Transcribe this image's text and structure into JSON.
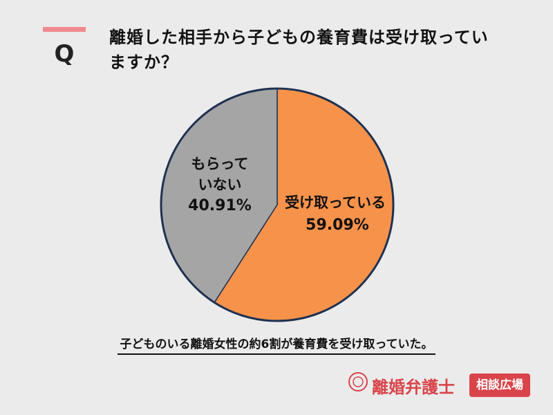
{
  "header": {
    "marker": "Q"
  },
  "chart_data": {
    "type": "pie",
    "title": "離婚した相手から子どもの養育費は受け取っていますか？",
    "categories": [
      "受け取っている",
      "もらっていない"
    ],
    "values": [
      59.09,
      40.91
    ],
    "value_labels": [
      "59.09%",
      "40.91%"
    ],
    "colors": [
      "#f7924a",
      "#a5a5a5"
    ],
    "note": "子どものいる離婚女性の約6割が養育費を受け取っていた。"
  },
  "brand": {
    "name": "離婚弁護士",
    "tag": "相談広場"
  }
}
